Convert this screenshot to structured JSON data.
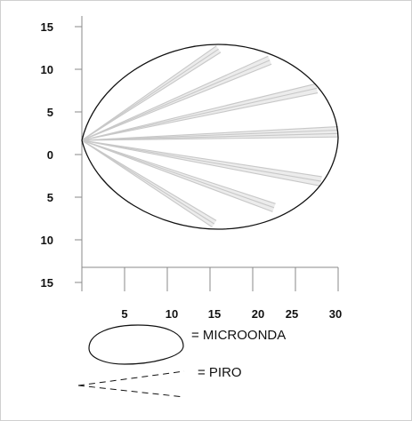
{
  "chart_data": {
    "type": "coverage-diagram",
    "y_ticks": [
      "15",
      "10",
      "5",
      "0",
      "5",
      "10",
      "15"
    ],
    "x_ticks": [
      "5",
      "10",
      "15",
      "20",
      "25",
      "30"
    ],
    "xlim": [
      0,
      30
    ],
    "ylim": [
      -15,
      15
    ],
    "microwave_lobe": {
      "apex": [
        0,
        0
      ],
      "max_range": 30,
      "top_extent": 11,
      "bottom_extent": -10,
      "stroke_color": "#111111"
    },
    "pir_beams": {
      "apex": [
        0,
        0
      ],
      "color": "#c8c8c8",
      "groups": [
        {
          "end": [
            16,
            10.7
          ],
          "spread": 0.9,
          "rays": 3
        },
        {
          "end": [
            22,
            9.4
          ],
          "spread": 1.0,
          "rays": 3
        },
        {
          "end": [
            27.5,
            6.1
          ],
          "spread": 1.1,
          "rays": 3
        },
        {
          "end": [
            30,
            1.0
          ],
          "spread": 1.2,
          "rays": 4
        },
        {
          "end": [
            28,
            -4.8
          ],
          "spread": 1.1,
          "rays": 3
        },
        {
          "end": [
            22.5,
            -7.9
          ],
          "spread": 1.0,
          "rays": 3
        },
        {
          "end": [
            15.5,
            -9.8
          ],
          "spread": 0.9,
          "rays": 3
        }
      ]
    }
  },
  "legend": {
    "microwave_label": "= MICROONDA",
    "pir_label": "= PIRO"
  },
  "colors": {
    "axis": "#8a8a8a",
    "ink": "#111111",
    "beam": "#c8c8c8",
    "frame_border": "#cfcfcf"
  }
}
